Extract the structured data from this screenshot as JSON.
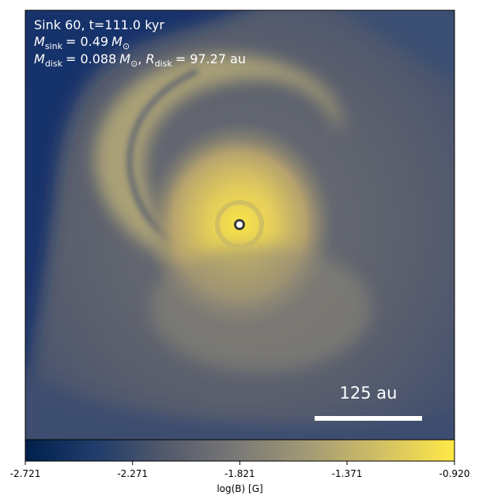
{
  "chart_data": {
    "type": "heatmap",
    "annotations": {
      "title_line": "Sink 60, t=111.0 kyr",
      "mass_sink": {
        "symbol": "M",
        "subscript": "sink",
        "value": "= 0.49",
        "unit": "M",
        "unit_subscript": "⊙"
      },
      "disk_line": {
        "symbol": "M",
        "subscript": "disk",
        "value": "= 0.088",
        "unit": "M",
        "unit_subscript": "⊙",
        "sep": ", ",
        "r_symbol": "R",
        "r_subscript": "disk",
        "r_value": "= 97.27",
        "r_unit": "au"
      }
    },
    "scale_bar": {
      "label": "125 au",
      "length_au": 125
    },
    "sink_marker": {
      "position": "center"
    },
    "colorbar": {
      "label": "log(B) [G]",
      "min": -2.721,
      "max": -0.92,
      "ticks": [
        "-2.721",
        "-2.271",
        "-1.821",
        "-1.371",
        "-0.920"
      ],
      "colormap": "cividis",
      "stops": [
        "#00204c",
        "#213d6b",
        "#555b6c",
        "#7b7a77",
        "#a59c74",
        "#d3c164",
        "#ffe945"
      ]
    }
  }
}
